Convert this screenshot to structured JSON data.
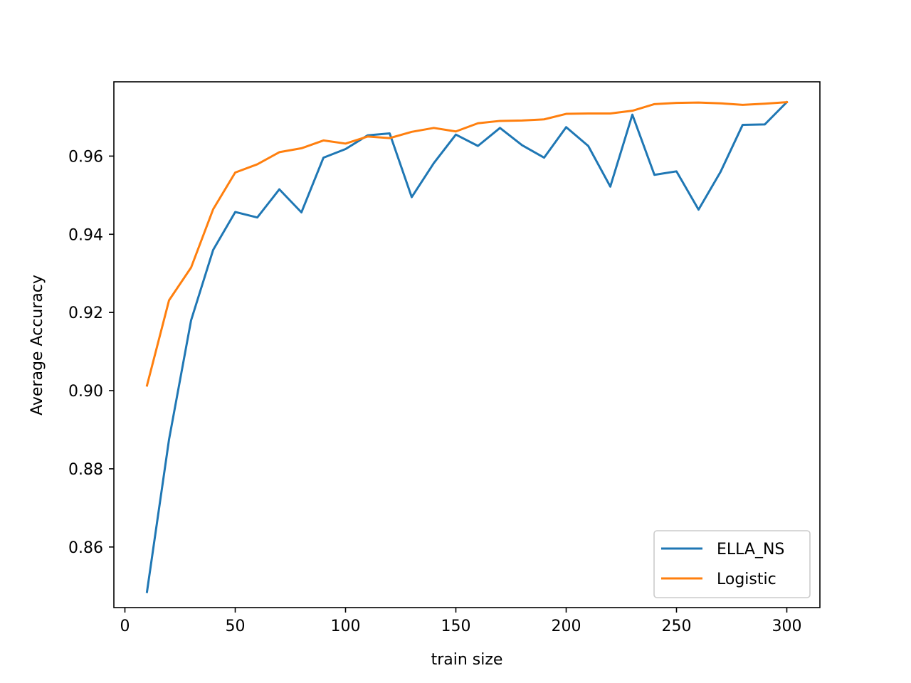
{
  "chart_data": {
    "type": "line",
    "title": "",
    "xlabel": "train size",
    "ylabel": "Average Accuracy",
    "xlim": [
      -5,
      315
    ],
    "ylim": [
      0.8445,
      0.979
    ],
    "xticks": [
      0,
      50,
      100,
      150,
      200,
      250,
      300
    ],
    "yticks": [
      0.86,
      0.88,
      0.9,
      0.92,
      0.94,
      0.96
    ],
    "ytick_labels": [
      "0.86",
      "0.88",
      "0.90",
      "0.92",
      "0.94",
      "0.96"
    ],
    "grid": false,
    "legend_position": "lower-right",
    "x": [
      10,
      20,
      30,
      40,
      50,
      60,
      70,
      80,
      90,
      100,
      110,
      120,
      130,
      140,
      150,
      160,
      170,
      180,
      190,
      200,
      210,
      220,
      230,
      240,
      250,
      260,
      270,
      280,
      290,
      300
    ],
    "series": [
      {
        "name": "ELLA_NS",
        "color": "#1f77b4",
        "values": [
          0.8485,
          0.8875,
          0.918,
          0.936,
          0.9457,
          0.9443,
          0.9515,
          0.9456,
          0.9596,
          0.9618,
          0.9653,
          0.9658,
          0.9495,
          0.9582,
          0.9655,
          0.9626,
          0.9672,
          0.9628,
          0.9596,
          0.9674,
          0.9626,
          0.9522,
          0.9706,
          0.9552,
          0.9561,
          0.9463,
          0.956,
          0.968,
          0.9681,
          0.9738
        ]
      },
      {
        "name": "Logistic",
        "color": "#ff7f0e",
        "values": [
          0.9013,
          0.9231,
          0.9315,
          0.9464,
          0.9558,
          0.9579,
          0.961,
          0.962,
          0.964,
          0.9632,
          0.965,
          0.9646,
          0.9662,
          0.9672,
          0.9663,
          0.9684,
          0.969,
          0.9691,
          0.9694,
          0.9708,
          0.9709,
          0.9709,
          0.9716,
          0.9733,
          0.9736,
          0.9737,
          0.9735,
          0.9731,
          0.9734,
          0.9738
        ]
      }
    ]
  }
}
